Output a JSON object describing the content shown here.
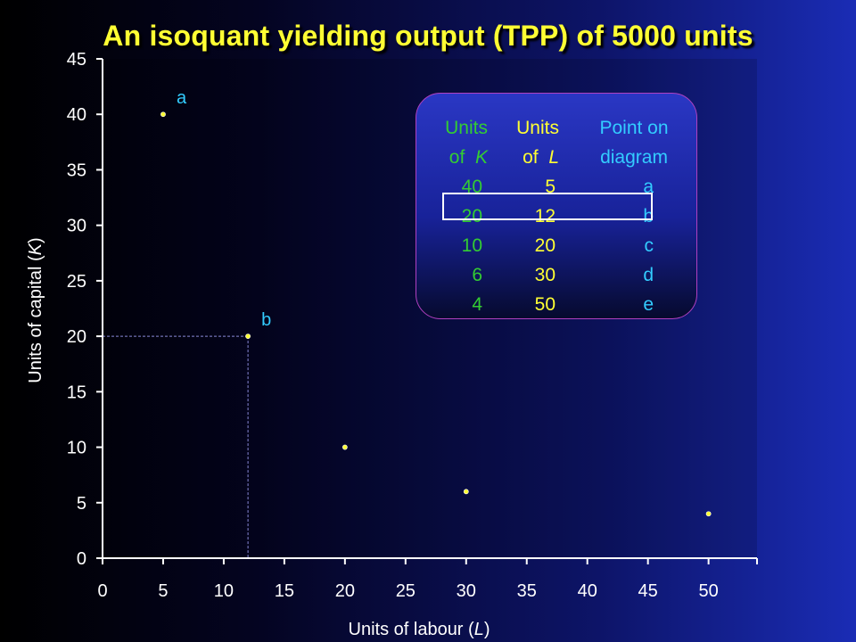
{
  "title": "An isoquant yielding output (TPP) of 5000 units",
  "chart_data": {
    "type": "scatter",
    "title": "An isoquant yielding output (TPP) of 5000 units",
    "xlabel_prefix": "Units of labour (",
    "xlabel_var": "L",
    "xlabel_suffix": ")",
    "ylabel_prefix": "Units of capital (",
    "ylabel_var": "K",
    "ylabel_suffix": ")",
    "xlim": [
      0,
      54
    ],
    "ylim": [
      0,
      45
    ],
    "xticks": [
      0,
      5,
      10,
      15,
      20,
      25,
      30,
      35,
      40,
      45,
      50
    ],
    "yticks": [
      0,
      5,
      10,
      15,
      20,
      25,
      30,
      35,
      40,
      45
    ],
    "grid": false,
    "points": [
      {
        "x": 5,
        "y": 40,
        "label": "a"
      },
      {
        "x": 12,
        "y": 20,
        "label": "b"
      },
      {
        "x": 20,
        "y": 10,
        "label": ""
      },
      {
        "x": 30,
        "y": 6,
        "label": ""
      },
      {
        "x": 50,
        "y": 4,
        "label": ""
      }
    ],
    "point_color": "#ffff33",
    "guide_point": {
      "x": 12,
      "y": 20
    }
  },
  "table": {
    "headers": {
      "k_line1": "Units",
      "k_line2_prefix": "of  ",
      "k_line2_var": "K",
      "l_line1": "Units",
      "l_line2_prefix": "of  ",
      "l_line2_var": "L",
      "p_line1": "Point on",
      "p_line2": "diagram"
    },
    "rows": [
      {
        "k": "40",
        "l": "5",
        "point": "a"
      },
      {
        "k": "20",
        "l": "12",
        "point": "b"
      },
      {
        "k": "10",
        "l": "20",
        "point": "c"
      },
      {
        "k": "6",
        "l": "30",
        "point": "d"
      },
      {
        "k": "4",
        "l": "50",
        "point": "e"
      }
    ],
    "highlighted_row": 1,
    "colors": {
      "k": "#33cc33",
      "l": "#ffff33",
      "point": "#33ccff",
      "border": "#b040c0"
    }
  }
}
